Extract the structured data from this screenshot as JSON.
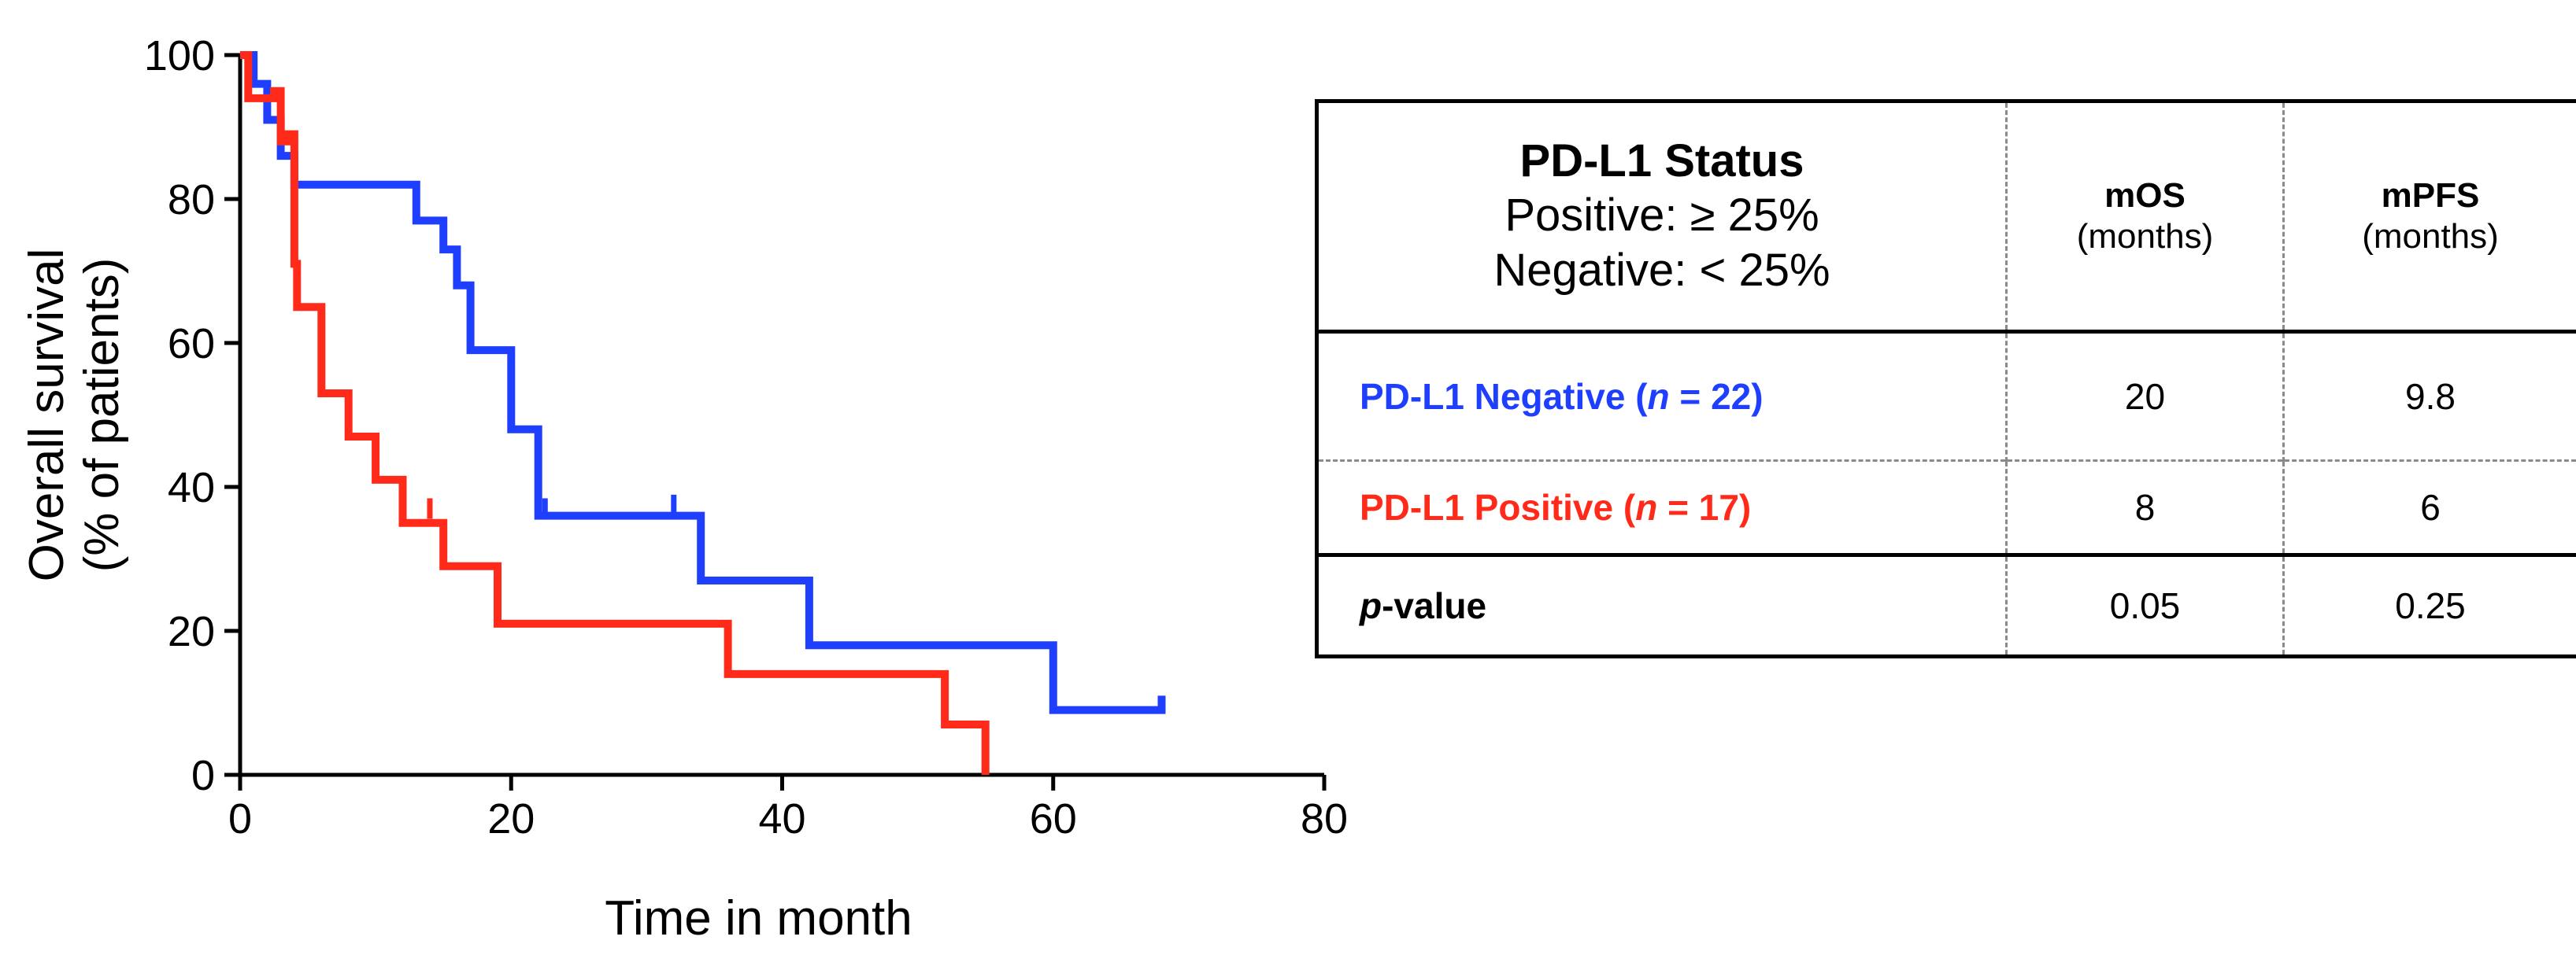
{
  "chart_data": {
    "type": "line",
    "subtype": "kaplan-meier step",
    "xlabel": "Time in month",
    "ylabel_line1": "Overall survival",
    "ylabel_line2": "(% of patients)",
    "xlim": [
      0,
      80
    ],
    "ylim": [
      0,
      100
    ],
    "xticks": [
      0,
      20,
      40,
      60,
      80
    ],
    "yticks": [
      0,
      20,
      40,
      60,
      80,
      100
    ],
    "grid": false,
    "series": [
      {
        "name": "PD-L1 Negative",
        "color": "#1f3fff",
        "steps": [
          [
            0,
            100
          ],
          [
            1,
            100
          ],
          [
            1,
            96
          ],
          [
            2,
            96
          ],
          [
            2,
            91
          ],
          [
            3,
            91
          ],
          [
            3,
            86
          ],
          [
            4,
            86
          ],
          [
            4,
            82
          ],
          [
            13,
            82
          ],
          [
            13,
            77
          ],
          [
            15,
            77
          ],
          [
            15,
            73
          ],
          [
            16,
            73
          ],
          [
            16,
            68
          ],
          [
            17,
            68
          ],
          [
            17,
            59
          ],
          [
            20,
            59
          ],
          [
            20,
            48
          ],
          [
            22,
            48
          ],
          [
            22,
            36
          ],
          [
            34,
            36
          ],
          [
            34,
            27
          ],
          [
            42,
            27
          ],
          [
            42,
            18
          ],
          [
            60,
            18
          ],
          [
            60,
            9
          ],
          [
            68,
            9
          ],
          [
            68,
            11
          ]
        ],
        "censor": [
          [
            22.5,
            37
          ],
          [
            32,
            37.5
          ]
        ]
      },
      {
        "name": "PD-L1 Positive",
        "color": "#ff2a1a",
        "steps": [
          [
            0,
            100
          ],
          [
            0.6,
            100
          ],
          [
            0.6,
            94
          ],
          [
            2.5,
            94
          ],
          [
            2.5,
            95
          ],
          [
            3,
            95
          ],
          [
            3,
            88
          ],
          [
            3.5,
            88
          ],
          [
            3.5,
            89
          ],
          [
            4,
            89
          ],
          [
            4,
            71
          ],
          [
            4.2,
            71
          ],
          [
            4.2,
            65
          ],
          [
            6,
            65
          ],
          [
            6,
            53
          ],
          [
            8,
            53
          ],
          [
            8,
            47
          ],
          [
            10,
            47
          ],
          [
            10,
            41
          ],
          [
            12,
            41
          ],
          [
            12,
            35
          ],
          [
            15,
            35
          ],
          [
            15,
            29
          ],
          [
            19,
            29
          ],
          [
            19,
            21
          ],
          [
            36,
            21
          ],
          [
            36,
            14
          ],
          [
            52,
            14
          ],
          [
            52,
            7
          ],
          [
            55,
            7
          ],
          [
            55,
            0
          ]
        ],
        "censor": [
          [
            14,
            37
          ]
        ]
      }
    ]
  },
  "table": {
    "header": {
      "title": "PD-L1 Status",
      "line2": "Positive: ≥ 25%",
      "line3": "Negative: < 25%",
      "col1": "mOS",
      "col1_unit": "(months)",
      "col2": "mPFS",
      "col2_unit": "(months)"
    },
    "rows": [
      {
        "label_pre": "PD-L1 Negative (",
        "label_n": "n",
        "label_post": " = 22)",
        "color": "#1f3fff",
        "mos": "20",
        "mpfs": "9.8"
      },
      {
        "label_pre": "PD-L1 Positive (",
        "label_n": "n",
        "label_post": " = 17)",
        "color": "#ff2a1a",
        "mos": "8",
        "mpfs": "6"
      }
    ],
    "pvalue": {
      "label_italic": "p",
      "label_rest": "-value",
      "mos": "0.05",
      "mpfs": "0.25"
    }
  }
}
